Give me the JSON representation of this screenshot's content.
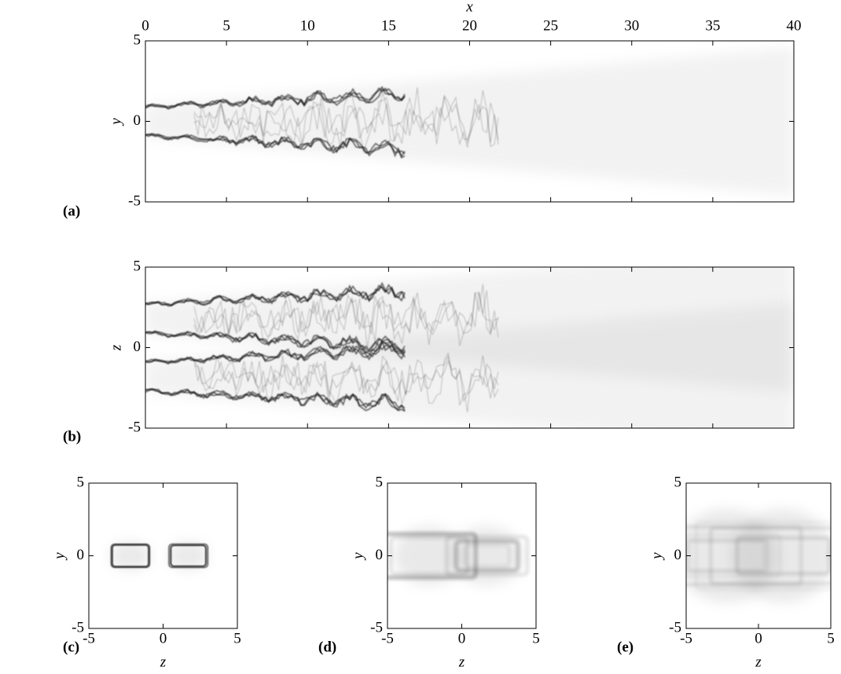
{
  "chart_data": [
    {
      "type": "image",
      "label": "(a)",
      "xlabel": "x",
      "ylabel": "y",
      "xaxis": "top",
      "xticklabels": true,
      "xlim": [
        0,
        40
      ],
      "ylim": [
        -5,
        5
      ],
      "xticks": [
        0,
        5,
        10,
        15,
        20,
        25,
        30,
        35,
        40
      ],
      "yticks": [
        -5,
        0,
        5
      ]
    },
    {
      "type": "image",
      "label": "(b)",
      "ylabel": "z",
      "xaxis": "bottom",
      "xticklabels": false,
      "xlim": [
        0,
        40
      ],
      "ylim": [
        -5,
        5
      ],
      "xticks": [
        0,
        5,
        10,
        15,
        20,
        25,
        30,
        35,
        40
      ],
      "yticks": [
        -5,
        0,
        5
      ]
    },
    {
      "type": "image",
      "label": "(c)",
      "xlabel": "z",
      "ylabel": "y",
      "xaxis": "bottom",
      "xticklabels": true,
      "xlim": [
        -5,
        5
      ],
      "ylim": [
        -5,
        5
      ],
      "xticks": [
        -5,
        0,
        5
      ],
      "yticks": [
        -5,
        0,
        5
      ]
    },
    {
      "type": "image",
      "label": "(d)",
      "xlabel": "z",
      "ylabel": "y",
      "xaxis": "bottom",
      "xticklabels": true,
      "xlim": [
        -5,
        5
      ],
      "ylim": [
        -5,
        5
      ],
      "xticks": [
        -5,
        0,
        5
      ],
      "yticks": [
        -5,
        0,
        5
      ]
    },
    {
      "type": "image",
      "label": "(e)",
      "xlabel": "z",
      "ylabel": "y",
      "xaxis": "bottom",
      "xticklabels": true,
      "xlim": [
        -5,
        5
      ],
      "ylim": [
        -5,
        5
      ],
      "xticks": [
        -5,
        0,
        5
      ],
      "yticks": [
        -5,
        0,
        5
      ]
    }
  ]
}
